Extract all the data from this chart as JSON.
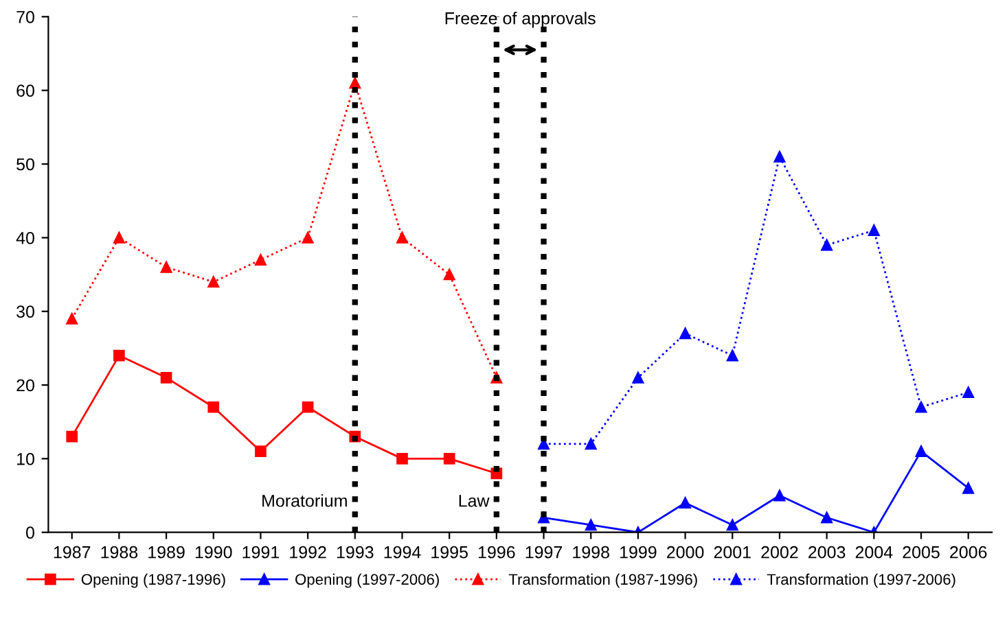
{
  "chart_data": {
    "type": "line",
    "categories": [
      "1987",
      "1988",
      "1989",
      "1990",
      "1991",
      "1992",
      "1993",
      "1994",
      "1995",
      "1996",
      "1997",
      "1998",
      "1999",
      "2000",
      "2001",
      "2002",
      "2003",
      "2004",
      "2005",
      "2006"
    ],
    "series": [
      {
        "name": "Opening (1987-1996)",
        "color": "#ff0000",
        "marker": "square",
        "line_style": "solid",
        "values": [
          13,
          24,
          21,
          17,
          11,
          17,
          13,
          10,
          10,
          8,
          null,
          null,
          null,
          null,
          null,
          null,
          null,
          null,
          null,
          null
        ]
      },
      {
        "name": "Opening (1997-2006)",
        "color": "#0000ff",
        "marker": "triangle",
        "line_style": "solid",
        "values": [
          null,
          null,
          null,
          null,
          null,
          null,
          null,
          null,
          null,
          null,
          2,
          1,
          0,
          4,
          1,
          5,
          2,
          0,
          11,
          6
        ]
      },
      {
        "name": "Transformation (1987-1996)",
        "color": "#ff0000",
        "marker": "triangle",
        "line_style": "dotted",
        "values": [
          29,
          40,
          36,
          34,
          37,
          40,
          61,
          40,
          35,
          21,
          null,
          null,
          null,
          null,
          null,
          null,
          null,
          null,
          null,
          null
        ]
      },
      {
        "name": "Transformation (1997-2006)",
        "color": "#0000ff",
        "marker": "triangle",
        "line_style": "dotted",
        "values": [
          null,
          null,
          null,
          null,
          null,
          null,
          null,
          null,
          null,
          null,
          12,
          12,
          21,
          27,
          24,
          51,
          39,
          41,
          17,
          19
        ]
      }
    ],
    "ylim": [
      0,
      70
    ],
    "yticks": [
      0,
      10,
      20,
      30,
      40,
      50,
      60,
      70
    ],
    "ref_lines": [
      {
        "axis": "x",
        "value": "1993",
        "label": "Moratorium",
        "color": "#000000",
        "line_style": "dotted"
      },
      {
        "axis": "x",
        "value": "1996",
        "label": "Law",
        "color": "#000000",
        "line_style": "dotted"
      },
      {
        "axis": "x",
        "value": "1997",
        "label": null,
        "color": "#000000",
        "line_style": "dotted"
      }
    ],
    "annotations": [
      "Freeze of approvals"
    ],
    "grid": false,
    "legend": "bottom"
  }
}
